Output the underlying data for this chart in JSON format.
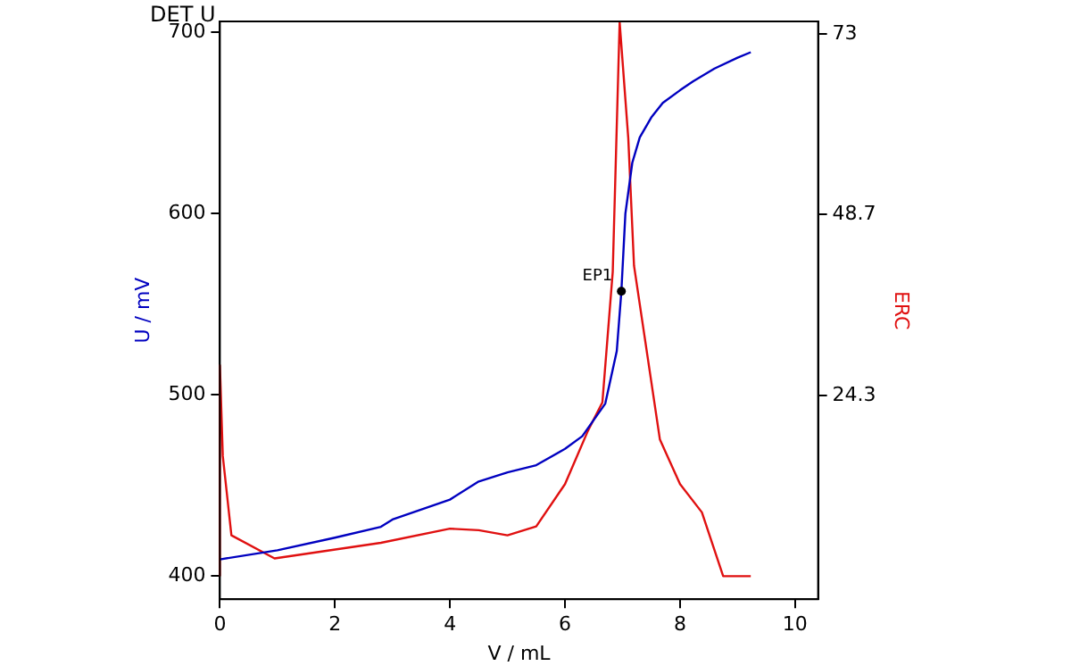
{
  "chart_data": {
    "type": "line",
    "title": "DET U",
    "xlabel": "V / mL",
    "ylabel": "U / mV",
    "y2label": "ERC",
    "xlim": [
      0,
      10.4
    ],
    "xticks": [
      0,
      2,
      4,
      6,
      8,
      10
    ],
    "ylim": [
      387,
      706
    ],
    "yticks": [
      400,
      500,
      600,
      700
    ],
    "y2lim": [
      -3.1,
      74.7
    ],
    "y2ticks": [
      24.3,
      48.7,
      73
    ],
    "grid": false,
    "legend": false,
    "marker": "none",
    "line_style": "solid",
    "annotations": [
      {
        "text": "EP1",
        "x": 6.98,
        "y": 557
      }
    ],
    "series": [
      {
        "color": "#0000c0",
        "x": [
          0,
          1,
          2,
          2.8,
          3,
          4,
          4.5,
          5,
          5.5,
          6,
          6.3,
          6.7,
          6.9,
          6.98,
          7.05,
          7.17,
          7.3,
          7.5,
          7.7,
          8.0,
          8.23,
          8.6,
          9.0,
          9.23
        ],
        "values": [
          409,
          414,
          421,
          427,
          431,
          442,
          452,
          457,
          461,
          470,
          477,
          495,
          524,
          557,
          600,
          628,
          642,
          653,
          661,
          668,
          673,
          680,
          686,
          689
        ]
      },
      {
        "color": "#e01010",
        "axis": "y2",
        "x": [
          0,
          0,
          0.05,
          0.2,
          0.95,
          2.8,
          4,
          4.5,
          5,
          5.5,
          6,
          6.4,
          6.65,
          6.83,
          6.95,
          7.1,
          7.2,
          7.65,
          8.0,
          8.38,
          8.75,
          9.23
        ],
        "values": [
          0,
          28.4,
          16.2,
          5.5,
          2.4,
          4.5,
          6.4,
          6.2,
          5.5,
          6.7,
          12.4,
          19.6,
          23.4,
          41,
          74.6,
          59,
          41.8,
          18.4,
          12.4,
          8.6,
          0,
          0
        ]
      }
    ]
  }
}
